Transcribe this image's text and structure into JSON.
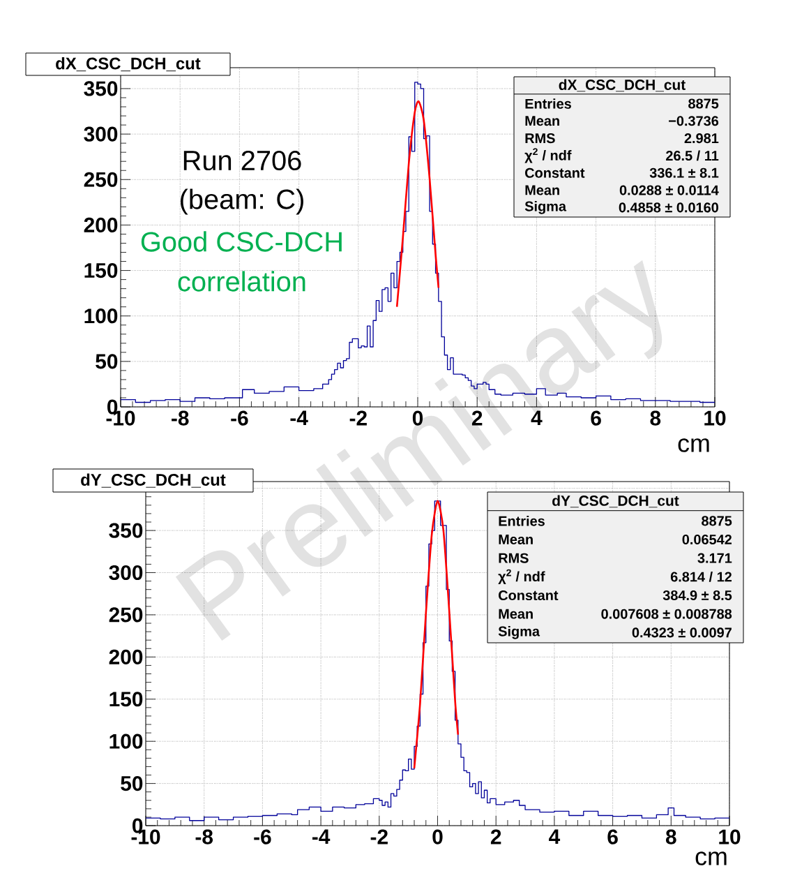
{
  "chart_data": [
    {
      "type": "step",
      "title": "dX_CSC_DCH_cut",
      "xlabel": "cm",
      "grid": true,
      "marker": "none",
      "line_style": "solid",
      "xlim": [
        -10,
        10
      ],
      "ylim": [
        0,
        373
      ],
      "xticks": [
        -10,
        -8,
        -6,
        -4,
        -2,
        0,
        2,
        4,
        6,
        8,
        10
      ],
      "yticks": [
        0,
        50,
        100,
        150,
        200,
        250,
        300,
        350
      ],
      "series": [
        {
          "type": "step",
          "color": "#000099",
          "x": [
            -10,
            -9.5,
            -9,
            -8.5,
            -8,
            -7.5,
            -7,
            -6.5,
            -5.9,
            -5.5,
            -5,
            -4.5,
            -4,
            -3.5,
            -3.2,
            -3.0,
            -2.9,
            -2.8,
            -2.7,
            -2.6,
            -2.5,
            -2.4,
            -2.3,
            -2.2,
            -2.1,
            -2.0,
            -1.9,
            -1.8,
            -1.7,
            -1.6,
            -1.5,
            -1.4,
            -1.3,
            -1.2,
            -1.1,
            -1.0,
            -0.9,
            -0.8,
            -0.7,
            -0.6,
            -0.5,
            -0.4,
            -0.3,
            -0.2,
            -0.1,
            0,
            0.1,
            0.2,
            0.3,
            0.4,
            0.5,
            0.6,
            0.7,
            0.8,
            0.9,
            1.0,
            1.1,
            1.2,
            1.5,
            1.6,
            1.7,
            1.8,
            1.9,
            2.0,
            2.2,
            2.3,
            2.4,
            2.6,
            2.8,
            3.2,
            3.6,
            4.0,
            4.3,
            4.7,
            5.0,
            5.5,
            6.0,
            6.5,
            7.0,
            7.5,
            8.0,
            8.5,
            9.0,
            9.5,
            10
          ],
          "values": [
            8,
            5,
            7,
            8,
            6,
            10,
            9,
            10,
            19,
            15,
            17,
            22,
            18,
            20,
            25,
            30,
            36,
            41,
            48,
            43,
            51,
            53,
            71,
            75,
            75,
            65,
            67,
            66,
            89,
            66,
            95,
            117,
            105,
            129,
            131,
            116,
            147,
            131,
            160,
            170,
            193,
            215,
            297,
            281,
            357,
            355,
            350,
            295,
            298,
            215,
            179,
            147,
            116,
            77,
            57,
            41,
            54,
            36,
            35,
            32,
            29,
            23,
            20,
            25,
            27,
            25,
            19,
            14,
            13,
            15,
            14,
            20,
            13,
            15,
            11,
            10,
            12,
            8,
            9,
            7,
            7,
            6,
            6,
            5,
            5
          ]
        },
        {
          "type": "line",
          "color": "#ff0000",
          "x": [
            -0.7,
            -0.5,
            -0.3,
            -0.1,
            0.03,
            0.2,
            0.4,
            0.6,
            0.7
          ],
          "values": [
            110,
            186,
            268,
            324,
            336,
            316,
            251,
            168,
            131
          ]
        }
      ],
      "annotations": [
        "Run 2706",
        "(beam: C)",
        "Good CSC-DCH",
        "correlation",
        "dX_CSC_DCH_cut",
        "Entries",
        "8875",
        "Mean",
        "−0.3736",
        "RMS",
        "2.981",
        "χ$^{2}$ / ndf",
        "26.5 / 11",
        "Constant",
        "336.1 ± 8.1",
        "Mean",
        "0.0288 ± 0.0114",
        "Sigma",
        "0.4858 ± 0.0160"
      ]
    },
    {
      "type": "step",
      "title": "dY_CSC_DCH_cut",
      "xlabel": "cm",
      "grid": true,
      "marker": "none",
      "line_style": "solid",
      "xlim": [
        -10,
        10
      ],
      "ylim": [
        0,
        408
      ],
      "xticks": [
        -10,
        -8,
        -6,
        -4,
        -2,
        0,
        2,
        4,
        6,
        8,
        10
      ],
      "yticks": [
        0,
        50,
        100,
        150,
        200,
        250,
        300,
        350,
        {
          "value": 400,
          "label": null
        }
      ],
      "series": [
        {
          "type": "step",
          "color": "#000099",
          "x": [
            -10,
            -9.5,
            -9,
            -8.5,
            -8,
            -7.5,
            -7,
            -6.5,
            -6,
            -5.5,
            -5,
            -4.8,
            -4.4,
            -4.0,
            -3.6,
            -3.2,
            -2.8,
            -2.5,
            -2.2,
            -2.0,
            -1.9,
            -1.8,
            -1.7,
            -1.6,
            -1.5,
            -1.4,
            -1.3,
            -1.2,
            -1.1,
            -1.0,
            -0.9,
            -0.8,
            -0.7,
            -0.6,
            -0.5,
            -0.4,
            -0.3,
            -0.2,
            -0.1,
            0,
            0.1,
            0.2,
            0.3,
            0.4,
            0.5,
            0.6,
            0.7,
            0.8,
            0.9,
            1.0,
            1.1,
            1.2,
            1.3,
            1.4,
            1.5,
            1.6,
            1.7,
            1.8,
            2.0,
            2.3,
            2.6,
            2.8,
            3.0,
            3.5,
            4.0,
            4.5,
            5.0,
            5.5,
            6.0,
            6.5,
            7.0,
            7.5,
            7.9,
            8.1,
            8.5,
            9.0,
            9.5,
            10
          ],
          "values": [
            9,
            8,
            10,
            6,
            10,
            7,
            10,
            11,
            12,
            14,
            13,
            19,
            22,
            17,
            22,
            21,
            25,
            26,
            32,
            30,
            24,
            28,
            22,
            38,
            35,
            43,
            54,
            66,
            65,
            79,
            67,
            94,
            118,
            156,
            217,
            284,
            334,
            350,
            385,
            385,
            356,
            356,
            280,
            219,
            183,
            125,
            97,
            81,
            65,
            63,
            46,
            50,
            38,
            52,
            33,
            42,
            27,
            32,
            25,
            28,
            30,
            24,
            19,
            16,
            17,
            12,
            17,
            12,
            11,
            12,
            9,
            13,
            21,
            12,
            10,
            8,
            9,
            9
          ]
        },
        {
          "type": "line",
          "color": "#ff0000",
          "x": [
            -0.8,
            -0.6,
            -0.4,
            -0.2,
            0,
            0.2,
            0.4,
            0.6,
            0.7
          ],
          "values": [
            68,
            145,
            252,
            345,
            385,
            350,
            254,
            148,
            108
          ]
        }
      ],
      "annotations": [
        "Preliminary",
        "dY_CSC_DCH_cut",
        "Entries",
        "8875",
        "Mean",
        "0.06542",
        "RMS",
        "3.171",
        "χ$^{2}$ / ndf",
        "6.814 / 12",
        "Constant",
        "384.9 ± 8.5",
        "Mean",
        "0.007608 ± 0.008788",
        "Sigma",
        "0.4323 ± 0.0097"
      ]
    }
  ]
}
